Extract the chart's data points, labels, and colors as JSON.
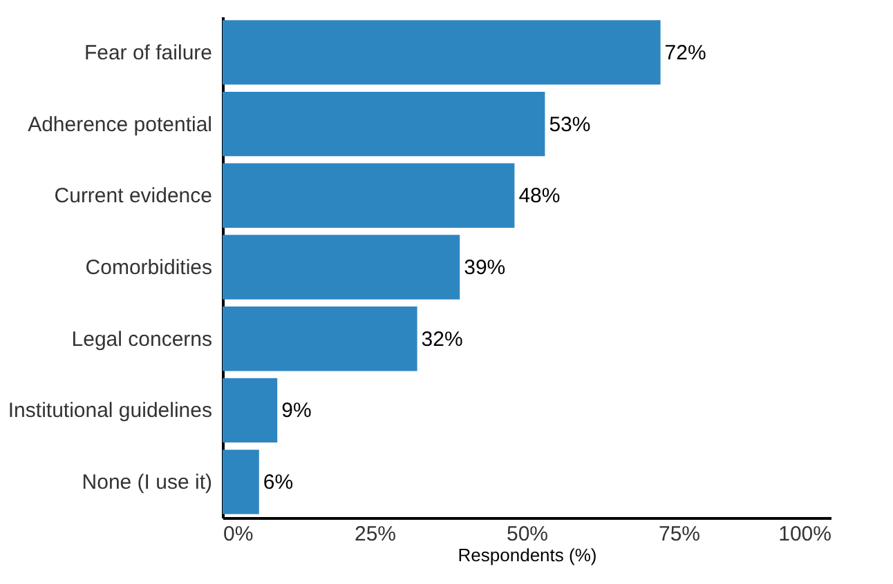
{
  "chart_data": {
    "type": "bar",
    "orientation": "horizontal",
    "xlabel": "Respondents (%)",
    "categories": [
      "Fear of failure",
      "Adherence potential",
      "Current evidence",
      "Comorbidities",
      "Legal concerns",
      "Institutional guidelines",
      "None (I use it)"
    ],
    "values": [
      72,
      53,
      48,
      39,
      32,
      9,
      6
    ],
    "value_labels": [
      "72%",
      "53%",
      "48%",
      "39%",
      "32%",
      "9%",
      "6%"
    ],
    "color": "#2e86c1",
    "xlim": [
      0,
      100
    ],
    "xticks": [
      {
        "value": 0,
        "label": "0%"
      },
      {
        "value": 25,
        "label": "25%"
      },
      {
        "value": 50,
        "label": "50%"
      },
      {
        "value": 75,
        "label": "75%"
      },
      {
        "value": 100,
        "label": "100%"
      }
    ],
    "grid": false
  }
}
